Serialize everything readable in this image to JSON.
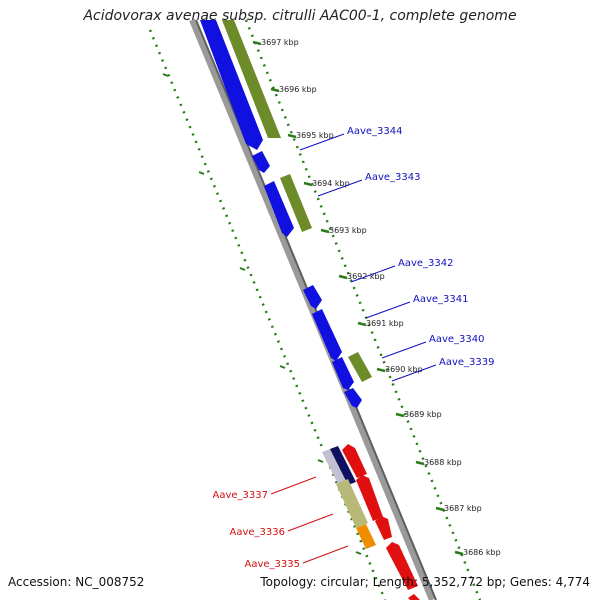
{
  "title": "Acidovorax avenae subsp. citrulli AAC00-1, complete genome",
  "footer": {
    "accession": "Accession: NC_008752",
    "summary": "Topology: circular; Length: 5,352,772 bp; Genes: 4,774"
  },
  "colors": {
    "forward_cds": "#1010e0",
    "forward_gene": "#6e8b2a",
    "reverse_cds": "#e01010",
    "reverse_gene_a": "#b8b878",
    "reverse_gene_b": "#f08c00",
    "reverse_gene_c": "#101060",
    "tick": "#2a7a1a",
    "forward_label": "#1010c0",
    "reverse_label": "#d01010"
  },
  "ticks": [
    {
      "kbp": 3697,
      "label": "3697 kbp"
    },
    {
      "kbp": 3696,
      "label": "3696 kbp"
    },
    {
      "kbp": 3695,
      "label": "3695 kbp"
    },
    {
      "kbp": 3694,
      "label": "3694 kbp"
    },
    {
      "kbp": 3693,
      "label": "3693 kbp"
    },
    {
      "kbp": 3692,
      "label": "3692 kbp"
    },
    {
      "kbp": 3691,
      "label": "3691 kbp"
    },
    {
      "kbp": 3690,
      "label": "3690 kbp"
    },
    {
      "kbp": 3689,
      "label": "3689 kbp"
    },
    {
      "kbp": 3688,
      "label": "3688 kbp"
    },
    {
      "kbp": 3687,
      "label": "3687 kbp"
    },
    {
      "kbp": 3686,
      "label": "3686 kbp"
    }
  ],
  "gene_labels": [
    {
      "name": "Aave_3344",
      "strand": "forward"
    },
    {
      "name": "Aave_3343",
      "strand": "forward"
    },
    {
      "name": "Aave_3342",
      "strand": "forward"
    },
    {
      "name": "Aave_3341",
      "strand": "forward"
    },
    {
      "name": "Aave_3340",
      "strand": "forward"
    },
    {
      "name": "Aave_3339",
      "strand": "forward"
    },
    {
      "name": "Aave_3337",
      "strand": "reverse"
    },
    {
      "name": "Aave_3336",
      "strand": "reverse"
    },
    {
      "name": "Aave_3335",
      "strand": "reverse"
    }
  ]
}
